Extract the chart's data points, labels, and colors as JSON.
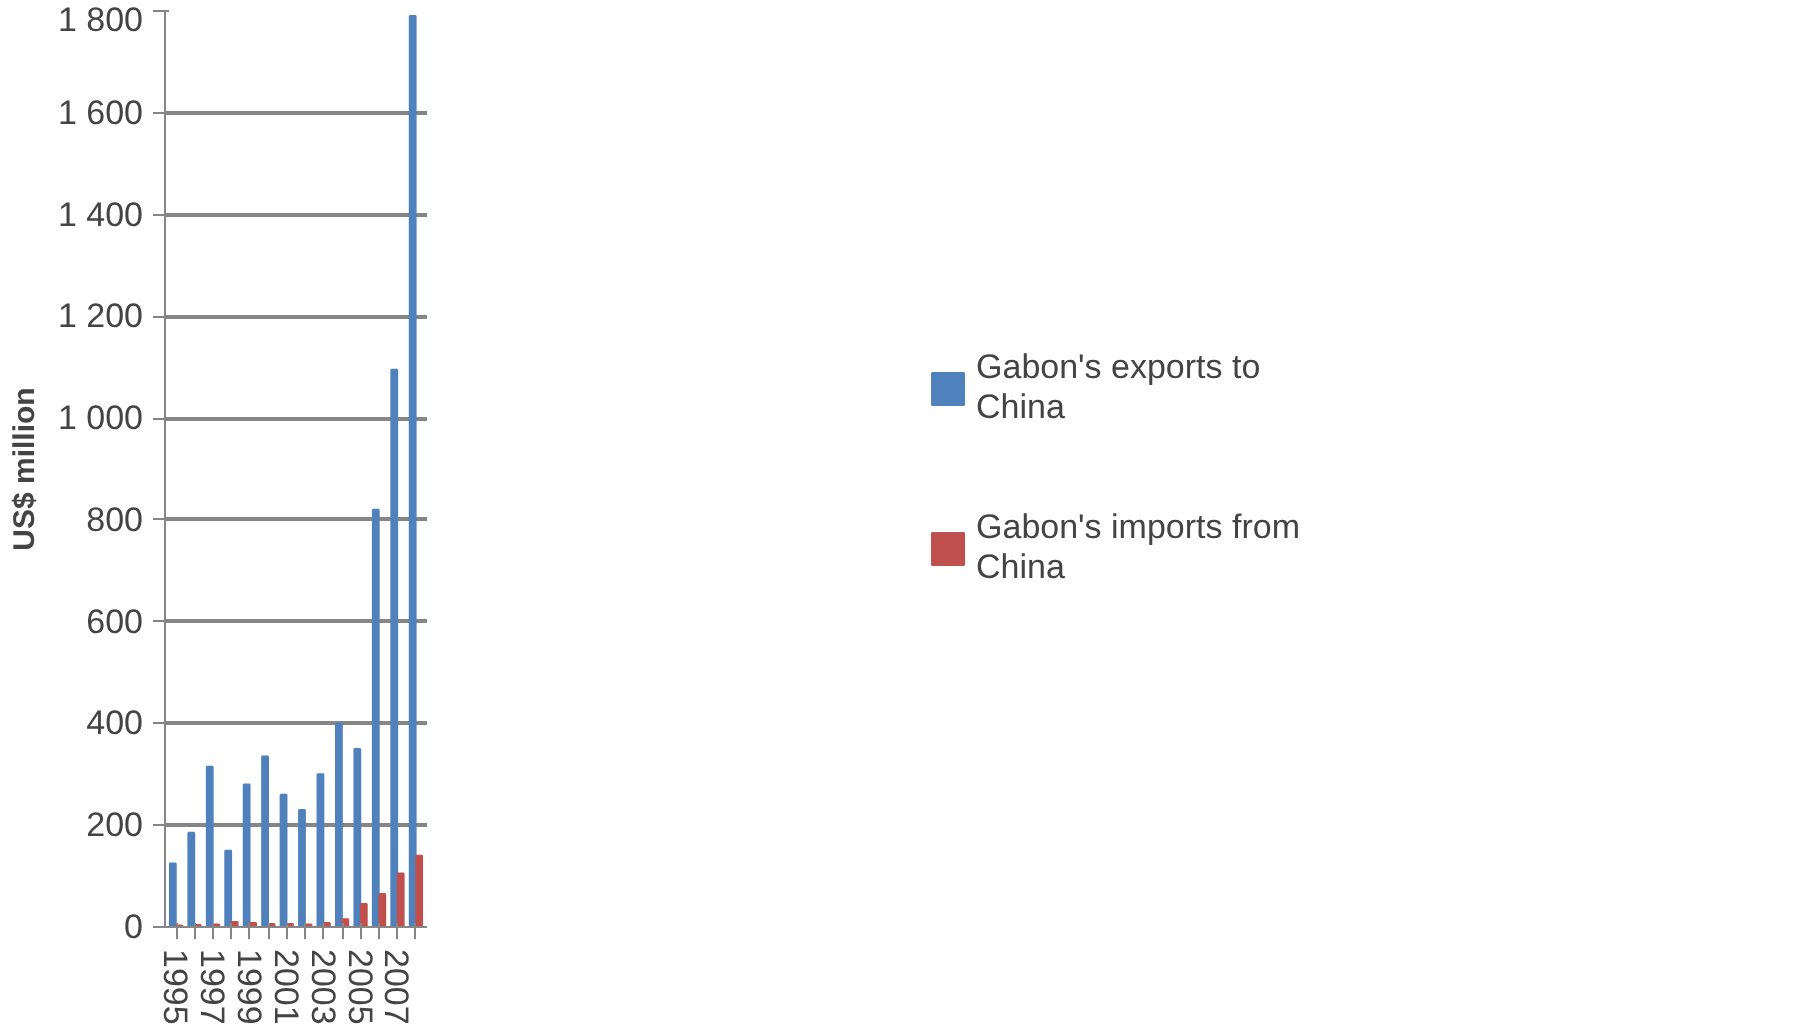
{
  "chart_data": {
    "type": "bar",
    "ylabel": "US$ million",
    "categories": [
      "1995",
      null,
      "1997",
      null,
      "1999",
      null,
      "2001",
      null,
      "2003",
      null,
      "2005",
      null,
      "2007",
      null
    ],
    "series": [
      {
        "name": "Gabon's exports to China",
        "color": "#4f81bd",
        "values": [
          125,
          185,
          315,
          150,
          280,
          335,
          260,
          230,
          300,
          400,
          350,
          820,
          1095,
          1790
        ]
      },
      {
        "name": "Gabon's imports from China",
        "color": "#c0504d",
        "values": [
          3,
          4,
          5,
          10,
          8,
          6,
          6,
          5,
          8,
          15,
          45,
          65,
          105,
          140
        ]
      }
    ],
    "ylim": [
      0,
      1800
    ],
    "yticks": [
      0,
      200,
      400,
      600,
      800,
      {
        "value": 1000,
        "label": "1 000"
      },
      {
        "value": 1200,
        "label": "1 200"
      },
      {
        "value": 1400,
        "label": "1 400"
      },
      {
        "value": 1600,
        "label": "1 600"
      },
      {
        "value": 1800,
        "label": "1 800"
      }
    ],
    "grid": "y",
    "legend": "right"
  }
}
